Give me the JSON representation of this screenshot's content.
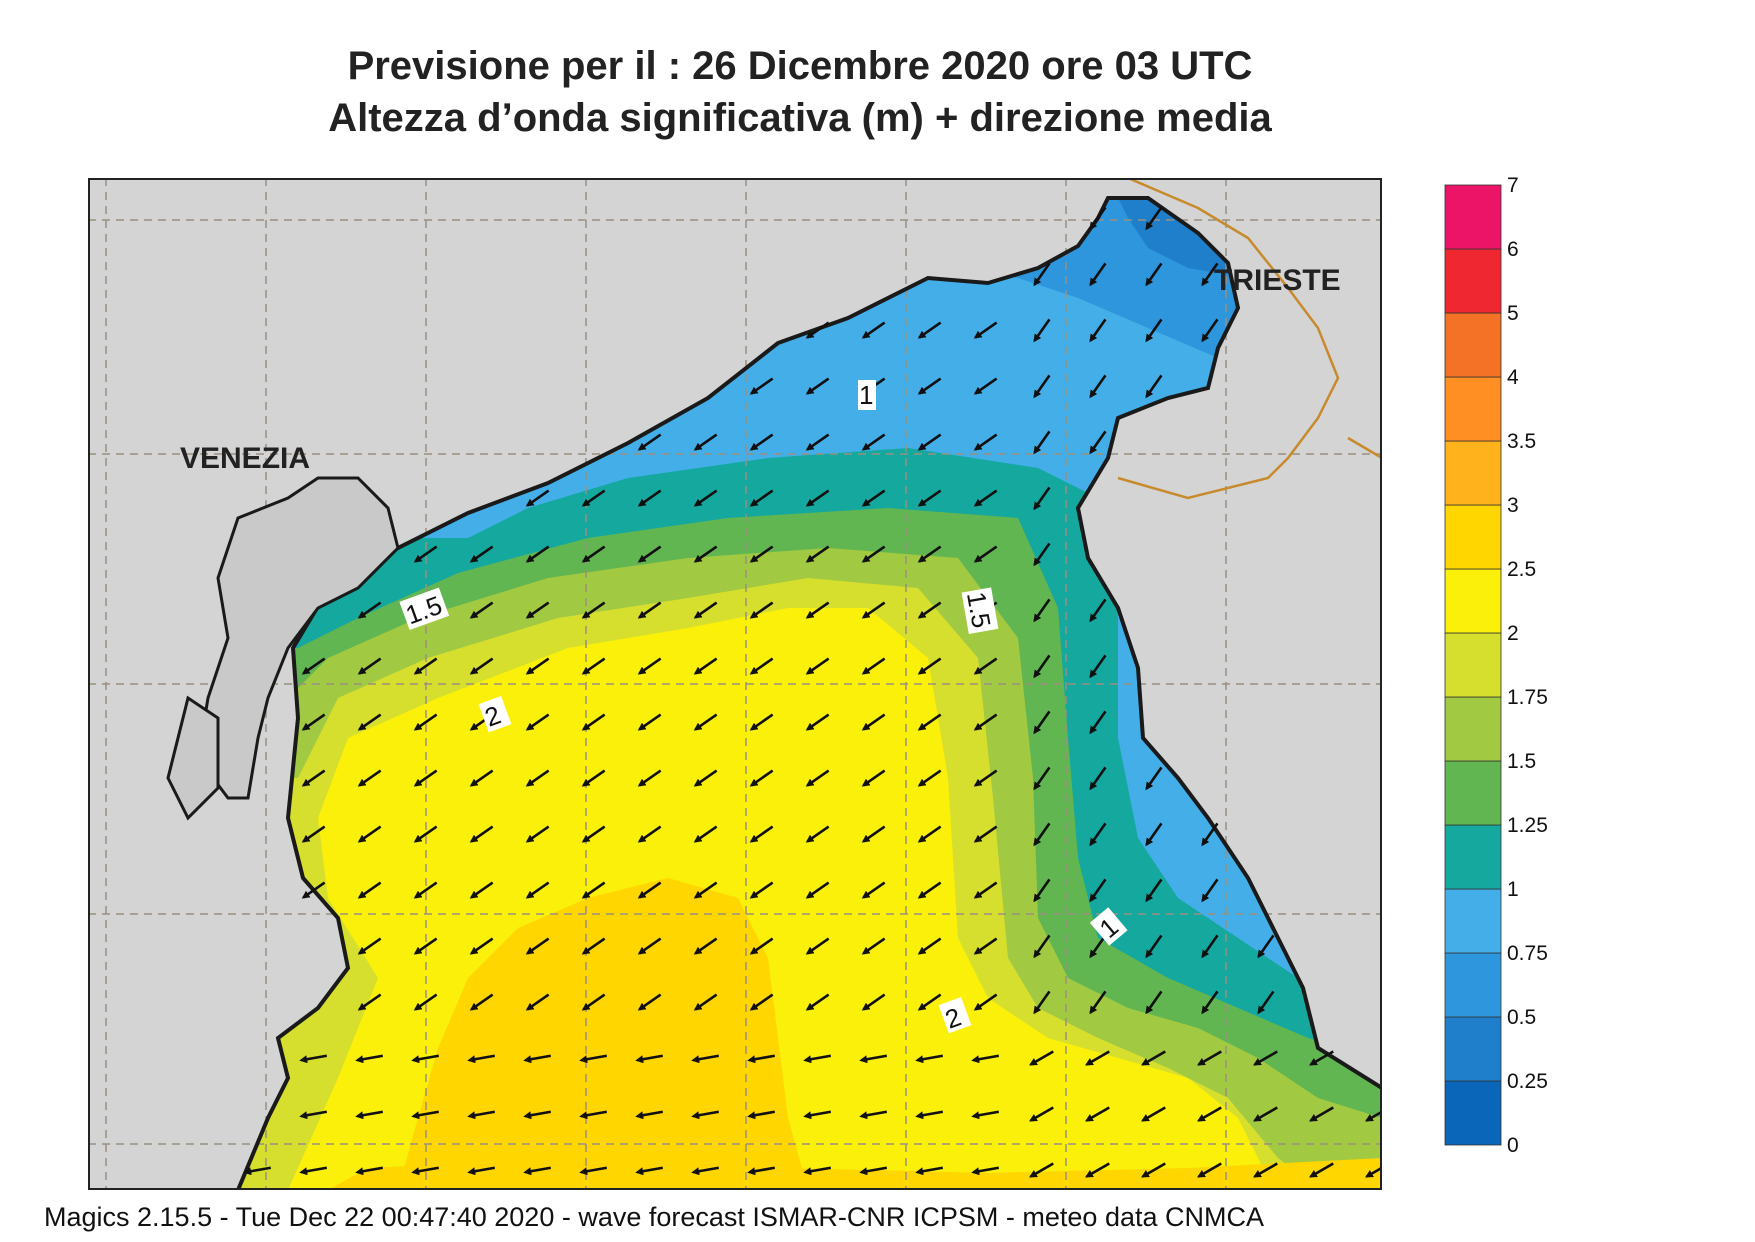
{
  "title": {
    "line1": "Previsione per il  :  26 Dicembre  2020   ore 03 UTC",
    "line2": "Altezza d’onda significativa (m) + direzione media"
  },
  "cities": [
    {
      "name": "VENEZIA"
    },
    {
      "name": "TRIESTE"
    }
  ],
  "contour_labels": [
    "1",
    "1.5",
    "1.5",
    "2",
    "2",
    "1"
  ],
  "legend": {
    "ticks": [
      "0",
      "0.25",
      "0.5",
      "0.75",
      "1",
      "1.25",
      "1.5",
      "1.75",
      "2",
      "2.5",
      "3",
      "3.5",
      "4",
      "5",
      "6",
      "7"
    ],
    "colors": [
      "#0a66b8",
      "#1f7fcb",
      "#2e96dc",
      "#43aee8",
      "#14a89f",
      "#62b651",
      "#a2c942",
      "#d6df2d",
      "#fbf00a",
      "#ffd600",
      "#ffb21c",
      "#ff8f23",
      "#f47225",
      "#ee2730",
      "#ec1467"
    ]
  },
  "colors": {
    "land": "#d4d4d4",
    "coast": "#1a1a1a",
    "grid": "#9a8f80",
    "border": "#c78a2c"
  },
  "footer": "Magics 2.15.5 - Tue Dec 22 00:47:40 2020 - wave forecast  ISMAR-CNR  ICPSM - meteo data   CNMCA"
}
